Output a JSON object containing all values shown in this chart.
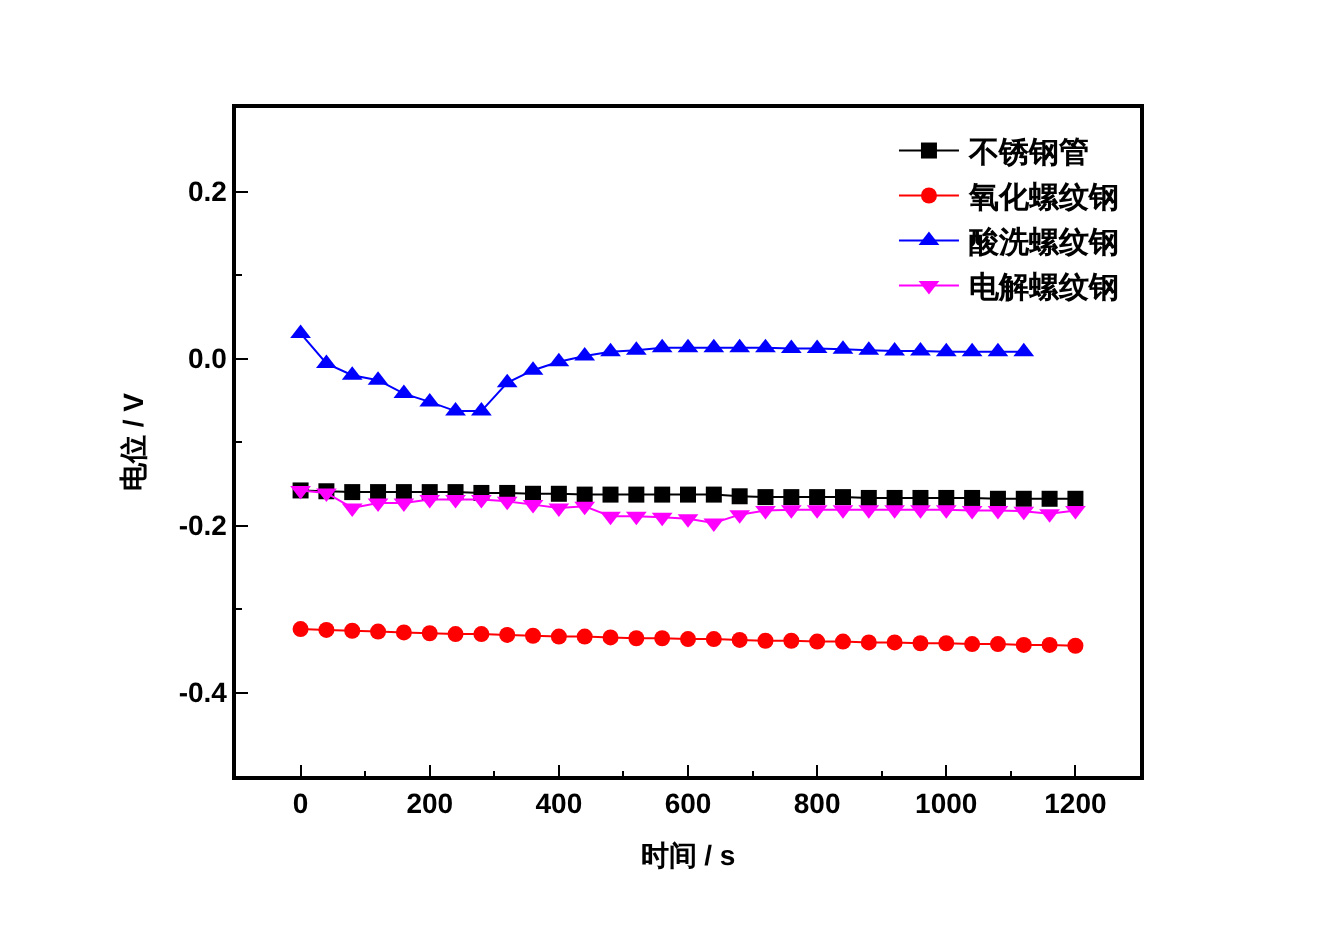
{
  "chart_data": {
    "type": "line",
    "xlabel": "时间 / s",
    "ylabel": "电位 / V",
    "x": [
      0,
      40,
      80,
      120,
      160,
      200,
      240,
      280,
      320,
      360,
      400,
      440,
      480,
      520,
      560,
      600,
      640,
      680,
      720,
      760,
      800,
      840,
      880,
      920,
      960,
      1000,
      1040,
      1080,
      1120,
      1160,
      1200
    ],
    "series": [
      {
        "name": "不锈钢管",
        "color": "#000000",
        "marker": "square",
        "values": [
          -0.158,
          -0.159,
          -0.16,
          -0.16,
          -0.16,
          -0.16,
          -0.16,
          -0.161,
          -0.161,
          -0.162,
          -0.162,
          -0.163,
          -0.163,
          -0.163,
          -0.163,
          -0.163,
          -0.163,
          -0.165,
          -0.166,
          -0.166,
          -0.166,
          -0.166,
          -0.167,
          -0.167,
          -0.167,
          -0.167,
          -0.167,
          -0.168,
          -0.168,
          -0.168,
          -0.168
        ]
      },
      {
        "name": "氧化螺纹钢",
        "color": "#ff0000",
        "marker": "circle",
        "values": [
          -0.324,
          -0.325,
          -0.326,
          -0.327,
          -0.328,
          -0.329,
          -0.33,
          -0.33,
          -0.331,
          -0.332,
          -0.333,
          -0.333,
          -0.334,
          -0.335,
          -0.335,
          -0.336,
          -0.336,
          -0.337,
          -0.338,
          -0.338,
          -0.339,
          -0.339,
          -0.34,
          -0.34,
          -0.341,
          -0.341,
          -0.342,
          -0.342,
          -0.343,
          -0.343,
          -0.344
        ]
      },
      {
        "name": "酸洗螺纹钢",
        "color": "#0000ff",
        "marker": "triangle",
        "x": [
          0,
          40,
          80,
          120,
          160,
          200,
          240,
          280,
          320,
          360,
          400,
          440,
          480,
          520,
          560,
          600,
          640,
          680,
          720,
          760,
          800,
          840,
          880,
          920,
          960,
          1000,
          1040,
          1080,
          1120
        ],
        "values": [
          0.03,
          -0.006,
          -0.02,
          -0.026,
          -0.042,
          -0.052,
          -0.063,
          -0.063,
          -0.029,
          -0.014,
          -0.004,
          0.003,
          0.008,
          0.01,
          0.013,
          0.013,
          0.013,
          0.013,
          0.013,
          0.012,
          0.012,
          0.011,
          0.01,
          0.009,
          0.009,
          0.008,
          0.008,
          0.008,
          0.008
        ]
      },
      {
        "name": "电解螺纹钢",
        "color": "#ff00ff",
        "marker": "triangle-down",
        "values": [
          -0.158,
          -0.161,
          -0.179,
          -0.173,
          -0.173,
          -0.169,
          -0.169,
          -0.169,
          -0.171,
          -0.175,
          -0.179,
          -0.177,
          -0.189,
          -0.189,
          -0.19,
          -0.192,
          -0.197,
          -0.187,
          -0.182,
          -0.181,
          -0.181,
          -0.181,
          -0.181,
          -0.181,
          -0.181,
          -0.181,
          -0.182,
          -0.182,
          -0.183,
          -0.186,
          -0.182
        ]
      }
    ],
    "xlim": [
      -100,
      1300
    ],
    "xticks": [
      0,
      {
        "value": 100,
        "label": null
      },
      200,
      {
        "value": 300,
        "label": null
      },
      400,
      {
        "value": 500,
        "label": null
      },
      600,
      {
        "value": 700,
        "label": null
      },
      800,
      {
        "value": 900,
        "label": null
      },
      1000,
      {
        "value": 1100,
        "label": null
      },
      1200
    ],
    "ylim": [
      -0.5,
      0.3
    ],
    "yticks": [
      {
        "value": -0.4,
        "label": "-0.4"
      },
      {
        "value": -0.3,
        "label": null
      },
      {
        "value": -0.2,
        "label": "-0.2"
      },
      {
        "value": -0.1,
        "label": null
      },
      {
        "value": 0,
        "label": "0.0"
      },
      {
        "value": 0.1,
        "label": null
      },
      {
        "value": 0.2,
        "label": "0.2"
      }
    ],
    "grid": false,
    "legend": "top right"
  }
}
